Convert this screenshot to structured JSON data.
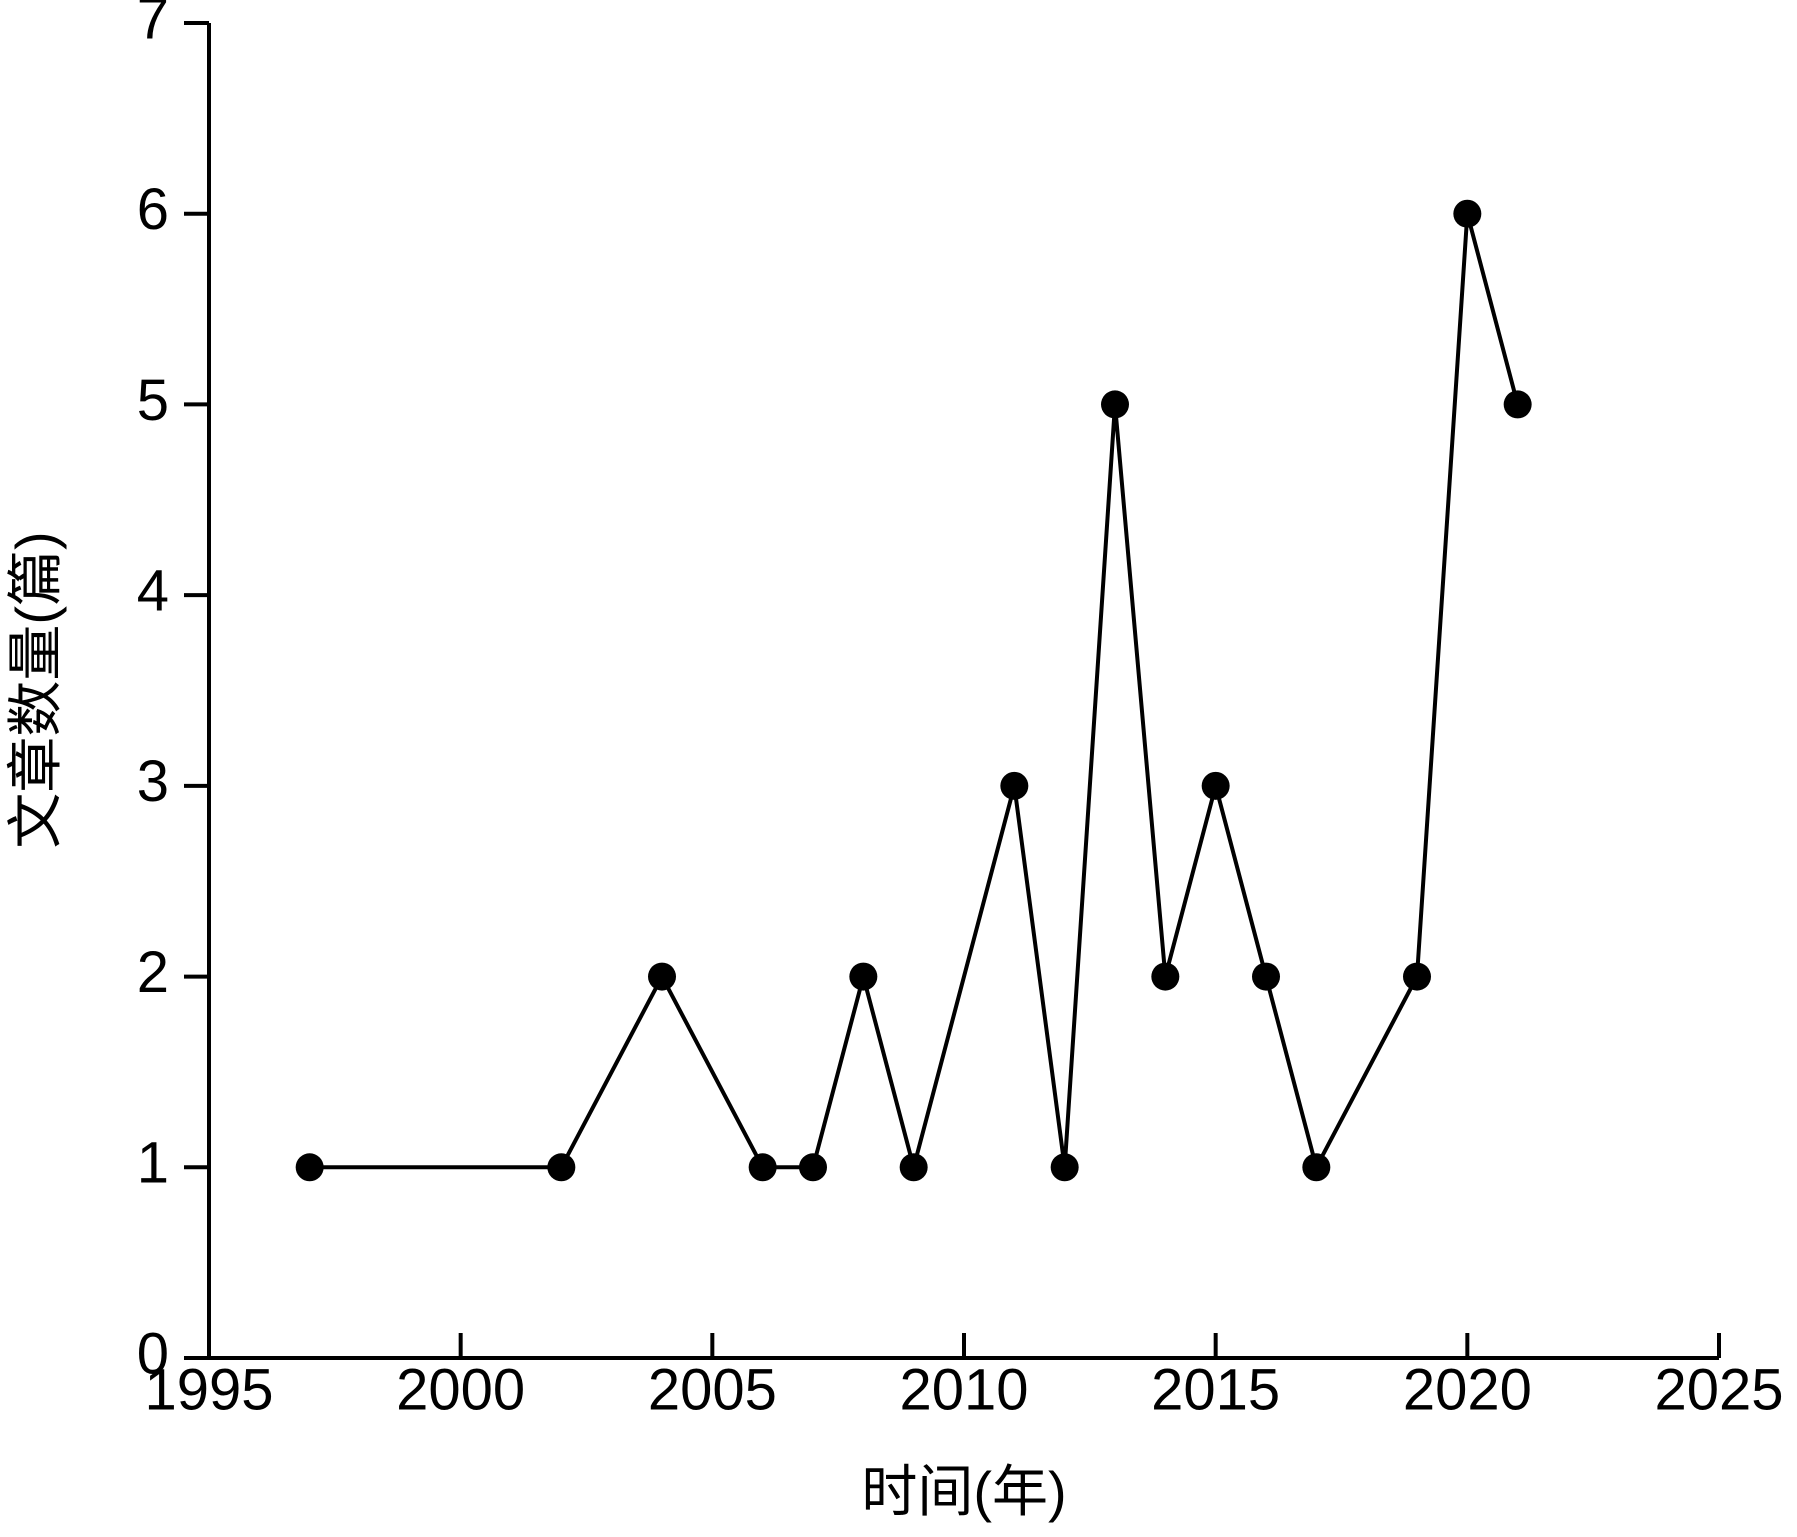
{
  "chart_data": {
    "type": "line",
    "x_label": "时间(年)",
    "y_label": "文章数量(篇)",
    "x": [
      1997,
      2002,
      2004,
      2006,
      2007,
      2008,
      2009,
      2011,
      2012,
      2013,
      2014,
      2015,
      2016,
      2017,
      2019,
      2020,
      2021
    ],
    "series": [
      {
        "color": "#000000",
        "values": [
          1,
          1,
          2,
          1,
          1,
          2,
          1,
          3,
          1,
          5,
          2,
          3,
          2,
          1,
          2,
          6,
          5
        ]
      }
    ],
    "xlim": [
      1995,
      2025
    ],
    "xticks": [
      1995,
      2000,
      2005,
      2010,
      2015,
      2020,
      2025
    ],
    "ylim": [
      0,
      7
    ],
    "yticks": [
      0,
      1,
      2,
      3,
      4,
      5,
      6,
      7
    ],
    "grid": false
  }
}
